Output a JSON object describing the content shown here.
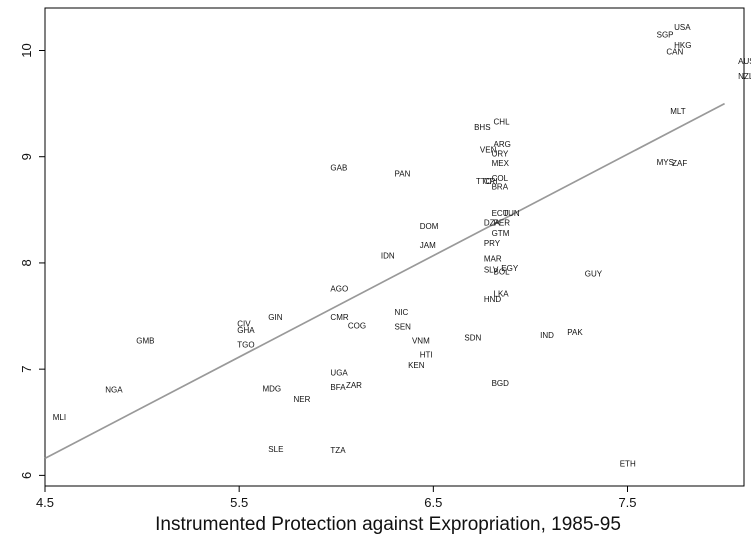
{
  "chart_data": {
    "type": "scatter",
    "title": "",
    "xlabel": "Instrumented Protection against Expropriation, 1985-95",
    "ylabel": "",
    "xlim": [
      4.5,
      8.1
    ],
    "ylim": [
      5.9,
      10.4
    ],
    "xticks": [
      4.5,
      5.5,
      6.5,
      7.5
    ],
    "xtick_labels": [
      "4.5",
      "5.5",
      "6.5",
      "7.5"
    ],
    "yticks": [
      6,
      7,
      8,
      9,
      10
    ],
    "ytick_labels": [
      "6",
      "7",
      "8",
      "9",
      "10"
    ],
    "grid": false,
    "legend": "none",
    "colors": {
      "fit_line": "#999999",
      "axis": "#000000",
      "text": "#111111"
    },
    "fit_line": {
      "x1": 4.5,
      "y1": 6.16,
      "x2": 8.0,
      "y2": 9.5
    },
    "points": [
      {
        "label": "MLI",
        "x": 4.54,
        "y": 6.55
      },
      {
        "label": "NGA",
        "x": 4.81,
        "y": 6.81
      },
      {
        "label": "GMB",
        "x": 4.97,
        "y": 7.27
      },
      {
        "label": "CIV",
        "x": 5.49,
        "y": 7.43
      },
      {
        "label": "GHA",
        "x": 5.49,
        "y": 7.37
      },
      {
        "label": "TGO",
        "x": 5.49,
        "y": 7.23
      },
      {
        "label": "GIN",
        "x": 5.65,
        "y": 7.49
      },
      {
        "label": "MDG",
        "x": 5.62,
        "y": 6.82
      },
      {
        "label": "SLE",
        "x": 5.65,
        "y": 6.25
      },
      {
        "label": "NER",
        "x": 5.78,
        "y": 6.72
      },
      {
        "label": "AGO",
        "x": 5.97,
        "y": 7.76
      },
      {
        "label": "CMR",
        "x": 5.97,
        "y": 7.49
      },
      {
        "label": "COG",
        "x": 6.06,
        "y": 7.41
      },
      {
        "label": "UGA",
        "x": 5.97,
        "y": 6.97
      },
      {
        "label": "BFA",
        "x": 5.97,
        "y": 6.83
      },
      {
        "label": "ZAR",
        "x": 6.05,
        "y": 6.85
      },
      {
        "label": "TZA",
        "x": 5.97,
        "y": 6.24
      },
      {
        "label": "GAB",
        "x": 5.97,
        "y": 8.9
      },
      {
        "label": "PAN",
        "x": 6.3,
        "y": 8.84
      },
      {
        "label": "IDN",
        "x": 6.23,
        "y": 8.07
      },
      {
        "label": "DOM",
        "x": 6.43,
        "y": 8.35
      },
      {
        "label": "JAM",
        "x": 6.43,
        "y": 8.17
      },
      {
        "label": "NIC",
        "x": 6.3,
        "y": 7.54
      },
      {
        "label": "SEN",
        "x": 6.3,
        "y": 7.4
      },
      {
        "label": "VNM",
        "x": 6.39,
        "y": 7.27
      },
      {
        "label": "HTI",
        "x": 6.43,
        "y": 7.14
      },
      {
        "label": "KEN",
        "x": 6.37,
        "y": 7.04
      },
      {
        "label": "SDN",
        "x": 6.66,
        "y": 7.3
      },
      {
        "label": "BGD",
        "x": 6.8,
        "y": 6.87
      },
      {
        "label": "BHS",
        "x": 6.71,
        "y": 9.28
      },
      {
        "label": "CHL",
        "x": 6.81,
        "y": 9.33
      },
      {
        "label": "ARG",
        "x": 6.81,
        "y": 9.12
      },
      {
        "label": "VEN",
        "x": 6.74,
        "y": 9.07
      },
      {
        "label": "URY",
        "x": 6.8,
        "y": 9.03
      },
      {
        "label": "MEX",
        "x": 6.8,
        "y": 8.94
      },
      {
        "label": "COL",
        "x": 6.8,
        "y": 8.8
      },
      {
        "label": "TTO",
        "x": 6.72,
        "y": 8.77
      },
      {
        "label": "CRI",
        "x": 6.76,
        "y": 8.77
      },
      {
        "label": "BRA",
        "x": 6.8,
        "y": 8.72
      },
      {
        "label": "ECU",
        "x": 6.8,
        "y": 8.47
      },
      {
        "label": "TUN",
        "x": 6.86,
        "y": 8.47
      },
      {
        "label": "DZA",
        "x": 6.76,
        "y": 8.38
      },
      {
        "label": "PER",
        "x": 6.81,
        "y": 8.38
      },
      {
        "label": "GTM",
        "x": 6.8,
        "y": 8.28
      },
      {
        "label": "PRY",
        "x": 6.76,
        "y": 8.19
      },
      {
        "label": "MAR",
        "x": 6.76,
        "y": 8.04
      },
      {
        "label": "SLV",
        "x": 6.76,
        "y": 7.94
      },
      {
        "label": "EGY",
        "x": 6.85,
        "y": 7.95
      },
      {
        "label": "BOL",
        "x": 6.81,
        "y": 7.92
      },
      {
        "label": "LKA",
        "x": 6.81,
        "y": 7.71
      },
      {
        "label": "HND",
        "x": 6.76,
        "y": 7.66
      },
      {
        "label": "IND",
        "x": 7.05,
        "y": 7.32
      },
      {
        "label": "PAK",
        "x": 7.19,
        "y": 7.35
      },
      {
        "label": "GUY",
        "x": 7.28,
        "y": 7.9
      },
      {
        "label": "ETH",
        "x": 7.46,
        "y": 6.11
      },
      {
        "label": "USA",
        "x": 7.74,
        "y": 10.22
      },
      {
        "label": "SGP",
        "x": 7.65,
        "y": 10.15
      },
      {
        "label": "HKG",
        "x": 7.74,
        "y": 10.05
      },
      {
        "label": "CAN",
        "x": 7.7,
        "y": 9.99
      },
      {
        "label": "AUS",
        "x": 8.07,
        "y": 9.9
      },
      {
        "label": "NZL",
        "x": 8.07,
        "y": 9.76
      },
      {
        "label": "MLT",
        "x": 7.72,
        "y": 9.43
      },
      {
        "label": "MYS",
        "x": 7.65,
        "y": 8.95
      },
      {
        "label": "ZAF",
        "x": 7.73,
        "y": 8.94
      }
    ]
  }
}
